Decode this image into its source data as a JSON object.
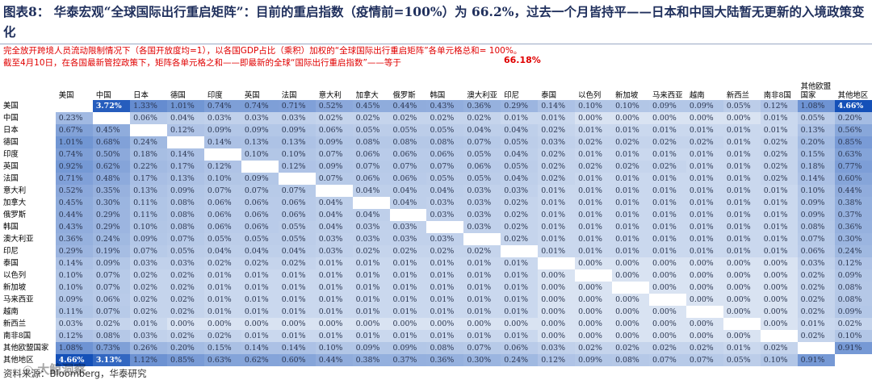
{
  "title": "图表8：  华泰宏观“全球国际出行重启矩阵”：目前的重启指数（疫情前=100%）为  66.2%，过去一个月皆持平——日本和中国大陆暂无更新的入境政策变化",
  "notes": {
    "line1": "完全放开跨境人员流动限制情况下（各国开放度均=1），以各国GDP占比（乘积）加权的“全球国际出行重启矩阵”各单元格总和= 100%。",
    "line2": "截至4月10日，在各国最新管控政策下，矩阵各单元格之和——即最新的全球“国际出行重启指数”——等于",
    "highlight": "66.18%"
  },
  "columns": [
    "美国",
    "中国",
    "日本",
    "德国",
    "印度",
    "英国",
    "法国",
    "意大利",
    "加拿大",
    "俄罗斯",
    "韩国",
    "澳大利亚",
    "印尼",
    "泰国",
    "以色列",
    "新加坡",
    "马来西亚",
    "越南",
    "新西兰",
    "南非8国",
    "其他欧盟国家",
    "其他地区"
  ],
  "rows": [
    {
      "label": "美国",
      "values": [
        "",
        "3.72%",
        "1.33%",
        "1.01%",
        "0.74%",
        "0.74%",
        "0.71%",
        "0.52%",
        "0.45%",
        "0.44%",
        "0.43%",
        "0.36%",
        "0.29%",
        "0.14%",
        "0.10%",
        "0.10%",
        "0.09%",
        "0.09%",
        "0.05%",
        "0.12%",
        "1.08%",
        "4.66%"
      ]
    },
    {
      "label": "中国",
      "values": [
        "0.23%",
        "",
        "0.06%",
        "0.04%",
        "0.03%",
        "0.03%",
        "0.03%",
        "0.02%",
        "0.02%",
        "0.02%",
        "0.02%",
        "0.02%",
        "0.01%",
        "0.01%",
        "0.00%",
        "0.00%",
        "0.00%",
        "0.00%",
        "0.00%",
        "0.01%",
        "0.05%",
        "0.20%"
      ]
    },
    {
      "label": "日本",
      "values": [
        "0.67%",
        "0.45%",
        "",
        "0.12%",
        "0.09%",
        "0.09%",
        "0.09%",
        "0.06%",
        "0.05%",
        "0.05%",
        "0.05%",
        "0.04%",
        "0.04%",
        "0.02%",
        "0.01%",
        "0.01%",
        "0.01%",
        "0.01%",
        "0.01%",
        "0.01%",
        "0.13%",
        "0.56%"
      ]
    },
    {
      "label": "德国",
      "values": [
        "1.01%",
        "0.68%",
        "0.24%",
        "",
        "0.14%",
        "0.13%",
        "0.13%",
        "0.09%",
        "0.08%",
        "0.08%",
        "0.08%",
        "0.07%",
        "0.05%",
        "0.03%",
        "0.02%",
        "0.02%",
        "0.02%",
        "0.02%",
        "0.01%",
        "0.02%",
        "0.20%",
        "0.85%"
      ]
    },
    {
      "label": "印度",
      "values": [
        "0.74%",
        "0.50%",
        "0.18%",
        "0.14%",
        "",
        "0.10%",
        "0.10%",
        "0.07%",
        "0.06%",
        "0.06%",
        "0.06%",
        "0.05%",
        "0.04%",
        "0.02%",
        "0.01%",
        "0.01%",
        "0.01%",
        "0.01%",
        "0.01%",
        "0.02%",
        "0.15%",
        "0.63%"
      ]
    },
    {
      "label": "英国",
      "values": [
        "0.92%",
        "0.62%",
        "0.22%",
        "0.17%",
        "0.12%",
        "",
        "0.12%",
        "0.09%",
        "0.07%",
        "0.07%",
        "0.07%",
        "0.06%",
        "0.05%",
        "0.02%",
        "0.02%",
        "0.02%",
        "0.02%",
        "0.01%",
        "0.01%",
        "0.02%",
        "0.18%",
        "0.77%"
      ]
    },
    {
      "label": "法国",
      "values": [
        "0.71%",
        "0.48%",
        "0.17%",
        "0.13%",
        "0.10%",
        "0.09%",
        "",
        "0.07%",
        "0.06%",
        "0.06%",
        "0.05%",
        "0.05%",
        "0.04%",
        "0.02%",
        "0.01%",
        "0.01%",
        "0.01%",
        "0.01%",
        "0.01%",
        "0.02%",
        "0.14%",
        "0.60%"
      ]
    },
    {
      "label": "意大利",
      "values": [
        "0.52%",
        "0.35%",
        "0.13%",
        "0.09%",
        "0.07%",
        "0.07%",
        "0.07%",
        "",
        "0.04%",
        "0.04%",
        "0.04%",
        "0.03%",
        "0.03%",
        "0.01%",
        "0.01%",
        "0.01%",
        "0.01%",
        "0.01%",
        "0.01%",
        "0.01%",
        "0.10%",
        "0.44%"
      ]
    },
    {
      "label": "加拿大",
      "values": [
        "0.45%",
        "0.30%",
        "0.11%",
        "0.08%",
        "0.06%",
        "0.06%",
        "0.06%",
        "0.04%",
        "",
        "0.04%",
        "0.03%",
        "0.03%",
        "0.02%",
        "0.01%",
        "0.01%",
        "0.01%",
        "0.01%",
        "0.01%",
        "0.01%",
        "0.01%",
        "0.09%",
        "0.38%"
      ]
    },
    {
      "label": "俄罗斯",
      "values": [
        "0.44%",
        "0.29%",
        "0.11%",
        "0.08%",
        "0.06%",
        "0.06%",
        "0.06%",
        "0.04%",
        "0.04%",
        "",
        "0.03%",
        "0.03%",
        "0.02%",
        "0.01%",
        "0.01%",
        "0.01%",
        "0.01%",
        "0.01%",
        "0.01%",
        "0.01%",
        "0.09%",
        "0.37%"
      ]
    },
    {
      "label": "韩国",
      "values": [
        "0.43%",
        "0.29%",
        "0.10%",
        "0.08%",
        "0.06%",
        "0.06%",
        "0.05%",
        "0.04%",
        "0.03%",
        "0.03%",
        "",
        "0.03%",
        "0.02%",
        "0.01%",
        "0.01%",
        "0.01%",
        "0.01%",
        "0.01%",
        "0.01%",
        "0.01%",
        "0.08%",
        "0.36%"
      ]
    },
    {
      "label": "澳大利亚",
      "values": [
        "0.36%",
        "0.24%",
        "0.09%",
        "0.07%",
        "0.05%",
        "0.05%",
        "0.05%",
        "0.03%",
        "0.03%",
        "0.03%",
        "0.03%",
        "",
        "0.02%",
        "0.01%",
        "0.01%",
        "0.01%",
        "0.01%",
        "0.01%",
        "0.01%",
        "0.01%",
        "0.07%",
        "0.30%"
      ]
    },
    {
      "label": "印尼",
      "values": [
        "0.29%",
        "0.19%",
        "0.07%",
        "0.05%",
        "0.04%",
        "0.04%",
        "0.04%",
        "0.03%",
        "0.02%",
        "0.02%",
        "0.02%",
        "0.02%",
        "",
        "0.01%",
        "0.01%",
        "0.01%",
        "0.01%",
        "0.01%",
        "0.01%",
        "0.01%",
        "0.06%",
        "0.24%"
      ]
    },
    {
      "label": "泰国",
      "values": [
        "0.14%",
        "0.09%",
        "0.03%",
        "0.03%",
        "0.02%",
        "0.02%",
        "0.02%",
        "0.01%",
        "0.01%",
        "0.01%",
        "0.01%",
        "0.01%",
        "0.01%",
        "",
        "0.00%",
        "0.00%",
        "0.00%",
        "0.00%",
        "0.00%",
        "0.00%",
        "0.03%",
        "0.12%"
      ]
    },
    {
      "label": "以色列",
      "values": [
        "0.10%",
        "0.07%",
        "0.02%",
        "0.02%",
        "0.01%",
        "0.01%",
        "0.01%",
        "0.01%",
        "0.01%",
        "0.01%",
        "0.01%",
        "0.01%",
        "0.01%",
        "0.00%",
        "",
        "0.00%",
        "0.00%",
        "0.00%",
        "0.00%",
        "0.00%",
        "0.02%",
        "0.09%"
      ]
    },
    {
      "label": "新加坡",
      "values": [
        "0.10%",
        "0.07%",
        "0.02%",
        "0.02%",
        "0.01%",
        "0.01%",
        "0.01%",
        "0.01%",
        "0.01%",
        "0.01%",
        "0.01%",
        "0.01%",
        "0.01%",
        "0.00%",
        "0.00%",
        "",
        "0.00%",
        "0.00%",
        "0.00%",
        "0.00%",
        "0.02%",
        "0.08%"
      ]
    },
    {
      "label": "马来西亚",
      "values": [
        "0.09%",
        "0.06%",
        "0.02%",
        "0.02%",
        "0.01%",
        "0.01%",
        "0.01%",
        "0.01%",
        "0.01%",
        "0.01%",
        "0.01%",
        "0.01%",
        "0.01%",
        "0.00%",
        "0.00%",
        "0.00%",
        "",
        "0.00%",
        "0.00%",
        "0.00%",
        "0.02%",
        "0.08%"
      ]
    },
    {
      "label": "越南",
      "values": [
        "0.11%",
        "0.07%",
        "0.02%",
        "0.02%",
        "0.01%",
        "0.01%",
        "0.01%",
        "0.01%",
        "0.01%",
        "0.01%",
        "0.01%",
        "0.01%",
        "0.01%",
        "0.00%",
        "0.00%",
        "0.00%",
        "0.00%",
        "",
        "0.00%",
        "0.00%",
        "0.02%",
        "0.09%"
      ]
    },
    {
      "label": "新西兰",
      "values": [
        "0.03%",
        "0.02%",
        "0.01%",
        "0.00%",
        "0.00%",
        "0.00%",
        "0.00%",
        "0.00%",
        "0.00%",
        "0.00%",
        "0.00%",
        "0.00%",
        "0.00%",
        "0.00%",
        "0.00%",
        "0.00%",
        "0.00%",
        "0.00%",
        "",
        "0.00%",
        "0.01%",
        "0.02%"
      ]
    },
    {
      "label": "南非8国",
      "values": [
        "0.12%",
        "0.08%",
        "0.03%",
        "0.02%",
        "0.02%",
        "0.01%",
        "0.01%",
        "0.01%",
        "0.01%",
        "0.01%",
        "0.01%",
        "0.01%",
        "0.01%",
        "0.00%",
        "0.00%",
        "0.00%",
        "0.00%",
        "0.00%",
        "0.00%",
        "",
        "0.02%",
        "0.10%"
      ]
    },
    {
      "label": "其他欧盟国家",
      "values": [
        "1.08%",
        "0.73%",
        "0.26%",
        "0.20%",
        "0.15%",
        "0.14%",
        "0.14%",
        "0.10%",
        "0.09%",
        "0.09%",
        "0.08%",
        "0.07%",
        "0.06%",
        "0.03%",
        "0.02%",
        "0.02%",
        "0.02%",
        "0.02%",
        "0.01%",
        "0.02%",
        "",
        "0.91%"
      ]
    },
    {
      "label": "其他地区",
      "values": [
        "4.66%",
        "3.13%",
        "1.12%",
        "0.85%",
        "0.63%",
        "0.62%",
        "0.60%",
        "0.44%",
        "0.38%",
        "0.37%",
        "0.36%",
        "0.30%",
        "0.24%",
        "0.12%",
        "0.09%",
        "0.08%",
        "0.07%",
        "0.07%",
        "0.05%",
        "0.10%",
        "0.91%",
        ""
      ]
    }
  ],
  "source": "资料来源：Bloomberg，华泰研究",
  "watermark": "◎ 大鲸洞察",
  "colors": {
    "title": "#1f2f5c",
    "note": "#e00000",
    "max": "#1450b8",
    "min": "#d9e3f2"
  }
}
